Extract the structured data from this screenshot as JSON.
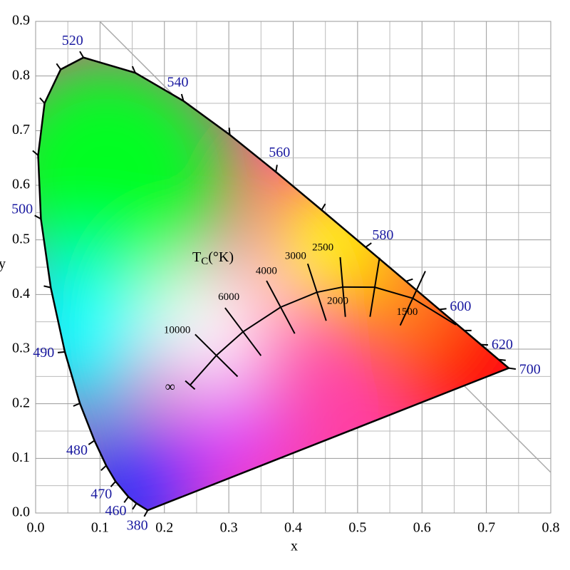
{
  "chart_data": {
    "type": "chromaticity",
    "x_label": "x",
    "y_label": "y",
    "xlim": [
      0,
      0.8
    ],
    "ylim": [
      0,
      0.9
    ],
    "xticks": [
      {
        "value": 0,
        "label": "0.0"
      },
      0.1,
      0.2,
      0.3,
      0.4,
      0.5,
      0.6,
      0.7,
      0.8
    ],
    "yticks": [
      {
        "value": 0,
        "label": "0.0"
      },
      0.1,
      0.2,
      0.3,
      0.4,
      0.5,
      0.6,
      0.7,
      0.8,
      0.9
    ],
    "grid": true,
    "minor_grid": true,
    "locus": {
      "wavelengths": [
        380,
        450,
        460,
        470,
        475,
        480,
        485,
        490,
        495,
        500,
        505,
        510,
        515,
        520,
        530,
        540,
        550,
        560,
        570,
        580,
        590,
        600,
        610,
        620,
        640,
        700
      ],
      "labeled": [
        true,
        false,
        true,
        true,
        false,
        true,
        false,
        true,
        false,
        true,
        false,
        false,
        false,
        true,
        false,
        true,
        false,
        true,
        false,
        true,
        false,
        true,
        false,
        true,
        false,
        true
      ],
      "x": [
        0.1741,
        0.1566,
        0.144,
        0.1241,
        0.1096,
        0.0913,
        0.0687,
        0.0454,
        0.0235,
        0.0082,
        0.0039,
        0.0139,
        0.0389,
        0.0743,
        0.1547,
        0.2296,
        0.3016,
        0.3731,
        0.4441,
        0.5125,
        0.5752,
        0.627,
        0.6658,
        0.6915,
        0.719,
        0.7347
      ],
      "y": [
        0.005,
        0.0177,
        0.0297,
        0.0578,
        0.0868,
        0.1327,
        0.2007,
        0.295,
        0.4127,
        0.5384,
        0.6548,
        0.7502,
        0.812,
        0.8338,
        0.8059,
        0.7543,
        0.6923,
        0.6245,
        0.5547,
        0.4866,
        0.4242,
        0.3725,
        0.334,
        0.3083,
        0.2809,
        0.2653
      ]
    },
    "planck_title": {
      "main": "T",
      "sub": "C",
      "rest": "(°K)"
    },
    "planck": {
      "labels": [
        null,
        1500,
        2000,
        2500,
        3000,
        4000,
        6000,
        10000,
        "∞"
      ],
      "x": [
        0.6528,
        0.5857,
        0.5267,
        0.477,
        0.4369,
        0.3805,
        0.3221,
        0.2807,
        0.2399
      ],
      "y": [
        0.3444,
        0.3931,
        0.4133,
        0.4137,
        0.4041,
        0.3768,
        0.3318,
        0.2884,
        0.2342
      ]
    }
  }
}
